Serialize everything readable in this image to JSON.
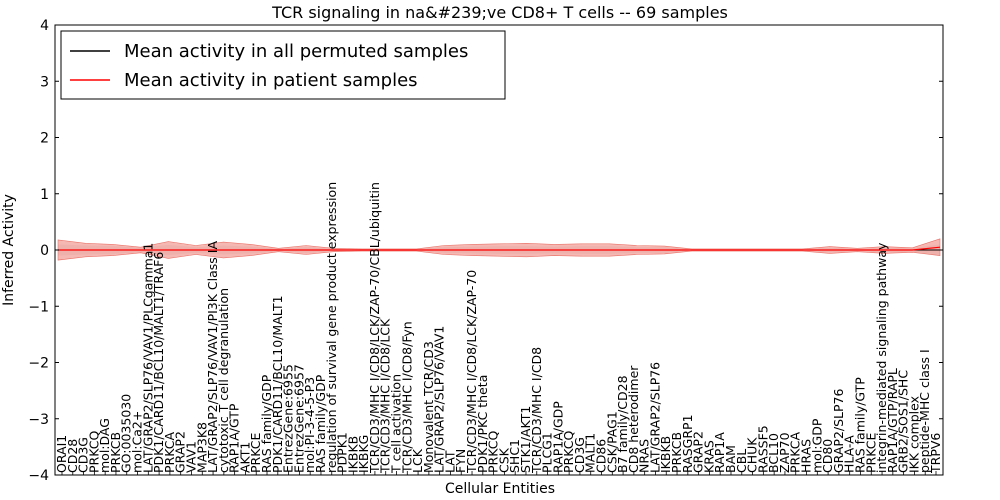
{
  "chart_data": {
    "type": "line",
    "title": "TCR signaling in na&#239;ve CD8+ T cells -- 69 samples",
    "xlabel": "Cellular Entities",
    "ylabel": "Inferred Activity",
    "ylim": [
      -4,
      4
    ],
    "yticks": [
      -4,
      -3,
      -2,
      -1,
      0,
      1,
      2,
      3,
      4
    ],
    "ytick_labels": [
      "−4",
      "−3",
      "−2",
      "−1",
      "0",
      "1",
      "2",
      "3",
      "4"
    ],
    "legend_placement": "top-left",
    "categories": [
      "ORAI1",
      "CD28",
      "CD3G",
      "PRKCQ",
      "LAT/GRAP2/SLP76/VAV1/PLCgamma1",
      "PDK1/CARD11/BCL10/MALT1/TRAF6",
      "GRAP2",
      "LAT/GRAP2/SLP76/VAV1/PI3K Class IA",
      "cytotoxic T cell degranulation",
      "RAP1A/GTP",
      "PDK1/CARD11/BCL10/MALT1",
      "EntrezGene:6955",
      "EntrezGene:6957",
      "mol:PI-3-4-5-P3",
      "RAS family/GDP",
      "regulation of survival gene product expression",
      "TCR/CD3/MHC I/CD8/LCK/ZAP-70/CBL/ubiquitin",
      "TCR/CD3/MHC I/CD8/LCK",
      "TCR/CD3/MHC I/CD8/Fyn",
      "Monovalent TCR/CD3",
      "LAT/GRAP2/SLP76/VAV1",
      "TCR/CD3/MHC I/CD8/LCK/ZAP-70",
      "PDK1/PKC theta",
      "CD8 heterodimer",
      "B7 family/CD28",
      "LAT/GRAP2/SLP76",
      "RAS family/GTP",
      "PRKCE",
      "integrin-mediated signaling pathway",
      "RAP1A/GTP/RAPL",
      "GRB2/SOS1/SHC",
      "peptide-MHC class I",
      "TRPV6"
    ],
    "visible_tick_labels": [
      "ORAI1",
      "CD28",
      "CD3G",
      "PRKCQ",
      "mol:DAG",
      "PRKCB",
      "GO:0035030",
      "mol:Ca2+",
      "LAT/GRAP2/SLP76/VAV1/PLCgamma1",
      "PDK1/CARD11/BCL10/MALT1/TRAF6",
      "PRKCA",
      "GRAP2",
      "VAV1",
      "MAP3K8",
      "LAT/GRAP2/SLP76/VAV1/PI3K Class IA",
      "cytotoxic T cell degranulation",
      "RAP1A/GTP",
      "AKT1",
      "PRKCE",
      "RAS family/GDP",
      "PDK1/CARD11/BCL10/MALT1",
      "EntrezGene:6955",
      "EntrezGene:6957",
      "mol:PI-3-4-5-P3",
      "RAS family/GDP",
      "regulation of survival gene product expression",
      "PDPK1",
      "IKBKB",
      "IKBKG",
      "TCR/CD3/MHC I/CD8/LCK/ZAP-70/CBL/ubiquitin",
      "TCR/CD3/MHC I/CD8/LCK",
      "T cell activation",
      "TCR/CD3/MHC I/CD8/Fyn",
      "LCK",
      "Monovalent TCR/CD3",
      "LAT/GRAP2/SLP76/VAV1",
      "LAT",
      "FYN",
      "TCR/CD3/MHC I/CD8/LCK/ZAP-70",
      "PDK1/PKC theta",
      "PRKCQ",
      "CSK",
      "SHC1",
      "STK1/AKT1",
      "TCR/CD3/MHC I/CD8",
      "PLCG1",
      "RAP1A/GDP",
      "PRKCQ",
      "CD3G",
      "MALT1",
      "CD86",
      "CSK/PAG1",
      "B7 family/CD28",
      "CD8 heterodimer",
      "NRAS",
      "LAT/GRAP2/SLP76",
      "IKBKB",
      "PRKCB",
      "RASGRP1",
      "GRAP2",
      "KRAS",
      "RAP1A",
      "BAM",
      "CBL",
      "CHUK",
      "RASSF5",
      "BCL10",
      "ZAP70",
      "PRKCA",
      "HRAS",
      "mol:GDP",
      "CD80",
      "GRAP2/SLP76",
      "HLA-A",
      "RAS family/GTP",
      "PRKCE",
      "integrin-mediated signaling pathway",
      "RAP1A/GTP/RAPL",
      "GRB2/SOS1/SHC",
      "IKK complex",
      "peptide-MHC class I",
      "TRPV6"
    ],
    "series": [
      {
        "name": "Mean activity in all permuted samples",
        "color": "#000000",
        "values": [
          0,
          0,
          0,
          0,
          0,
          0,
          0,
          0,
          0,
          0,
          0,
          0,
          0,
          0,
          0,
          0,
          0,
          0,
          0,
          0,
          0,
          0,
          0,
          0,
          0,
          0,
          0,
          0,
          0,
          0,
          0,
          0,
          0
        ]
      },
      {
        "name": "Mean activity in patient samples",
        "color": "#ff0000",
        "values": [
          0,
          0,
          0,
          0,
          0,
          0,
          0,
          0,
          0,
          0,
          0,
          0,
          0,
          0,
          0,
          0,
          0,
          0,
          0,
          0,
          0,
          0,
          0,
          0,
          0,
          0,
          0,
          0,
          0,
          0,
          0,
          0,
          0.05
        ]
      }
    ],
    "patient_band_halfwidth": [
      0.18,
      0.12,
      0.1,
      0.05,
      0.15,
      0.08,
      0.14,
      0.1,
      0.03,
      0.08,
      0.03,
      0.02,
      0.02,
      0.02,
      0.08,
      0.1,
      0.11,
      0.12,
      0.1,
      0.11,
      0.11,
      0.08,
      0.07,
      0.02,
      0.02,
      0.02,
      0.02,
      0.02,
      0.06,
      0.03,
      0.06,
      0.04,
      0.15
    ],
    "permuted_band_halfwidth": [
      0.1,
      0.08,
      0.07,
      0.04,
      0.09,
      0.05,
      0.08,
      0.06,
      0.02,
      0.05,
      0.02,
      0.02,
      0.02,
      0.02,
      0.05,
      0.06,
      0.07,
      0.07,
      0.06,
      0.07,
      0.07,
      0.05,
      0.05,
      0.02,
      0.02,
      0.02,
      0.02,
      0.02,
      0.04,
      0.02,
      0.04,
      0.03,
      0.1
    ]
  },
  "colors": {
    "patient_band": "#f4a6a0",
    "permuted_band": "#cccccc",
    "zero_line": "#000000"
  }
}
